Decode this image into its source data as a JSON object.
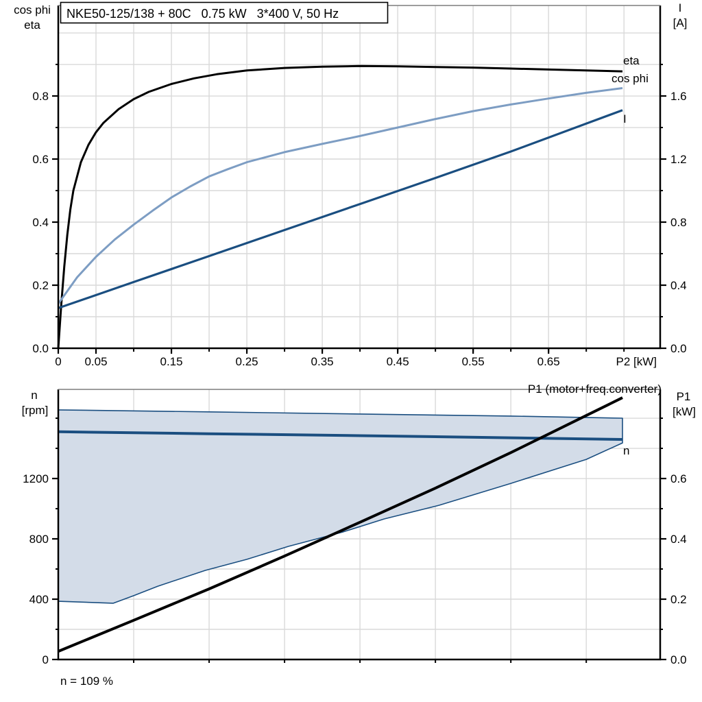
{
  "colors": {
    "black": "#000000",
    "dark_blue": "#1a4e80",
    "light_blue": "#7d9dc3",
    "band_fill": "#d3dce8",
    "grid": "#d9d9d9",
    "frame_top": "#7d7d7d"
  },
  "chart_data": [
    {
      "id": "top",
      "type": "line",
      "title": "NKE50-125/138 + 80C   0.75 kW   3*400 V, 50 Hz",
      "x_axis": {
        "label": "P2 [kW]",
        "min": 0,
        "max": 0.798,
        "gridlines": [
          0.05,
          0.1,
          0.15,
          0.2,
          0.25,
          0.3,
          0.35,
          0.4,
          0.45,
          0.5,
          0.55,
          0.6,
          0.65,
          0.7,
          0.75
        ],
        "minor_ticks": [
          0,
          0.05,
          0.1,
          0.15,
          0.2,
          0.25,
          0.3,
          0.35,
          0.4,
          0.45,
          0.5,
          0.55,
          0.6,
          0.65,
          0.7,
          0.75
        ],
        "labeled_ticks": [
          {
            "v": 0,
            "t": "0"
          },
          {
            "v": 0.05,
            "t": "0.05"
          },
          {
            "v": 0.15,
            "t": "0.15"
          },
          {
            "v": 0.25,
            "t": "0.25"
          },
          {
            "v": 0.35,
            "t": "0.35"
          },
          {
            "v": 0.45,
            "t": "0.45"
          },
          {
            "v": 0.55,
            "t": "0.55"
          },
          {
            "v": 0.65,
            "t": "0.65"
          }
        ]
      },
      "left_axis": {
        "label_lines": [
          "cos phi",
          "eta"
        ],
        "min": 0,
        "max": 1.087,
        "gridlines": [
          0.1,
          0.2,
          0.3,
          0.4,
          0.5,
          0.6,
          0.7,
          0.8,
          0.9,
          1.0
        ],
        "minor_ticks": [
          0.1,
          0.3,
          0.5,
          0.7,
          0.9
        ],
        "labeled_ticks": [
          {
            "v": 0,
            "t": "0.0"
          },
          {
            "v": 0.2,
            "t": "0.2"
          },
          {
            "v": 0.4,
            "t": "0.4"
          },
          {
            "v": 0.6,
            "t": "0.6"
          },
          {
            "v": 0.8,
            "t": "0.8"
          }
        ]
      },
      "right_axis": {
        "label_lines": [
          "I",
          "[A]"
        ],
        "min": 0,
        "max": 2.174,
        "gridlines": [],
        "minor_ticks": [
          0.2,
          0.6,
          1.0,
          1.4,
          1.8
        ],
        "labeled_ticks": [
          {
            "v": 0,
            "t": "0.0"
          },
          {
            "v": 0.4,
            "t": "0.4"
          },
          {
            "v": 0.8,
            "t": "0.8"
          },
          {
            "v": 1.2,
            "t": "1.2"
          },
          {
            "v": 1.6,
            "t": "1.6"
          }
        ]
      },
      "series": [
        {
          "name": "eta",
          "axis": "left",
          "color": "#000000",
          "width": 3,
          "points": [
            [
              0,
              0
            ],
            [
              0.004,
              0.14
            ],
            [
              0.008,
              0.26
            ],
            [
              0.012,
              0.36
            ],
            [
              0.016,
              0.44
            ],
            [
              0.02,
              0.5
            ],
            [
              0.03,
              0.59
            ],
            [
              0.04,
              0.645
            ],
            [
              0.05,
              0.685
            ],
            [
              0.06,
              0.715
            ],
            [
              0.08,
              0.758
            ],
            [
              0.1,
              0.79
            ],
            [
              0.12,
              0.813
            ],
            [
              0.15,
              0.838
            ],
            [
              0.18,
              0.856
            ],
            [
              0.21,
              0.869
            ],
            [
              0.25,
              0.881
            ],
            [
              0.3,
              0.889
            ],
            [
              0.35,
              0.893
            ],
            [
              0.4,
              0.895
            ],
            [
              0.45,
              0.894
            ],
            [
              0.5,
              0.892
            ],
            [
              0.55,
              0.89
            ],
            [
              0.6,
              0.887
            ],
            [
              0.65,
              0.884
            ],
            [
              0.7,
              0.881
            ],
            [
              0.748,
              0.878
            ]
          ]
        },
        {
          "name": "cos phi",
          "axis": "left",
          "color": "#7d9dc3",
          "width": 3,
          "points": [
            [
              0,
              0.141
            ],
            [
              0.025,
              0.225
            ],
            [
              0.05,
              0.29
            ],
            [
              0.075,
              0.345
            ],
            [
              0.1,
              0.392
            ],
            [
              0.125,
              0.436
            ],
            [
              0.15,
              0.478
            ],
            [
              0.175,
              0.513
            ],
            [
              0.2,
              0.545
            ],
            [
              0.225,
              0.568
            ],
            [
              0.25,
              0.59
            ],
            [
              0.3,
              0.622
            ],
            [
              0.35,
              0.648
            ],
            [
              0.4,
              0.673
            ],
            [
              0.45,
              0.7
            ],
            [
              0.5,
              0.727
            ],
            [
              0.55,
              0.752
            ],
            [
              0.6,
              0.773
            ],
            [
              0.65,
              0.792
            ],
            [
              0.7,
              0.81
            ],
            [
              0.748,
              0.825
            ]
          ]
        },
        {
          "name": "I",
          "axis": "right",
          "color": "#1a4e80",
          "width": 3.2,
          "points": [
            [
              0,
              0.255
            ],
            [
              0.1,
              0.42
            ],
            [
              0.2,
              0.585
            ],
            [
              0.3,
              0.75
            ],
            [
              0.4,
              0.915
            ],
            [
              0.5,
              1.08
            ],
            [
              0.6,
              1.248
            ],
            [
              0.7,
              1.425
            ],
            [
              0.748,
              1.51
            ]
          ]
        }
      ]
    },
    {
      "id": "bottom",
      "type": "line",
      "top_label": "P1 (motor+freq.converter)",
      "annotation": "n = 109 %",
      "x_axis": {
        "label": "",
        "min": 0,
        "max": 0.798,
        "gridlines": [
          0.1,
          0.2,
          0.3,
          0.4,
          0.5,
          0.6,
          0.7
        ],
        "minor_ticks": [
          0.1,
          0.2,
          0.3,
          0.4,
          0.5,
          0.6,
          0.7
        ],
        "labeled_ticks": []
      },
      "left_axis": {
        "label_lines": [
          "n",
          "[rpm]"
        ],
        "min": 0,
        "max": 1791,
        "gridlines": [
          200,
          400,
          600,
          800,
          1000,
          1200,
          1400,
          1600
        ],
        "minor_ticks": [
          200,
          600,
          1000,
          1400,
          1600
        ],
        "labeled_ticks": [
          {
            "v": 0,
            "t": "0"
          },
          {
            "v": 400,
            "t": "400"
          },
          {
            "v": 800,
            "t": "800"
          },
          {
            "v": 1200,
            "t": "1200"
          }
        ]
      },
      "right_axis": {
        "label_lines": [
          "P1",
          "[kW]"
        ],
        "min": 0,
        "max": 0.8955,
        "gridlines": [],
        "minor_ticks": [
          0.1,
          0.3,
          0.5,
          0.7,
          0.8
        ],
        "labeled_ticks": [
          {
            "v": 0,
            "t": "0.0"
          },
          {
            "v": 0.2,
            "t": "0.2"
          },
          {
            "v": 0.4,
            "t": "0.4"
          },
          {
            "v": 0.6,
            "t": "0.6"
          }
        ]
      },
      "band": {
        "name": "speed-operating-range",
        "fill": "#d3dce8",
        "edge_color": "#1a4e80",
        "edge_width": 1.6,
        "upper": [
          [
            0,
            1655
          ],
          [
            0.2,
            1642
          ],
          [
            0.4,
            1628
          ],
          [
            0.6,
            1614
          ],
          [
            0.748,
            1600
          ]
        ],
        "lower": [
          [
            0,
            386
          ],
          [
            0.073,
            373
          ],
          [
            0.1,
            423
          ],
          [
            0.132,
            486
          ],
          [
            0.195,
            591
          ],
          [
            0.25,
            664
          ],
          [
            0.305,
            750
          ],
          [
            0.377,
            845
          ],
          [
            0.432,
            932
          ],
          [
            0.505,
            1023
          ],
          [
            0.6,
            1168
          ],
          [
            0.7,
            1327
          ],
          [
            0.748,
            1436
          ]
        ]
      },
      "series": [
        {
          "name": "n",
          "axis": "left",
          "color": "#1a4e80",
          "width": 4,
          "points": [
            [
              0,
              1510
            ],
            [
              0.2,
              1497
            ],
            [
              0.4,
              1484
            ],
            [
              0.6,
              1470
            ],
            [
              0.748,
              1459
            ]
          ]
        },
        {
          "name": "P1",
          "axis": "right",
          "color": "#000000",
          "width": 4,
          "points": [
            [
              0,
              0.027
            ],
            [
              0.1,
              0.13
            ],
            [
              0.2,
              0.234
            ],
            [
              0.3,
              0.343
            ],
            [
              0.4,
              0.455
            ],
            [
              0.5,
              0.568
            ],
            [
              0.6,
              0.686
            ],
            [
              0.7,
              0.809
            ],
            [
              0.748,
              0.868
            ]
          ]
        }
      ]
    }
  ]
}
